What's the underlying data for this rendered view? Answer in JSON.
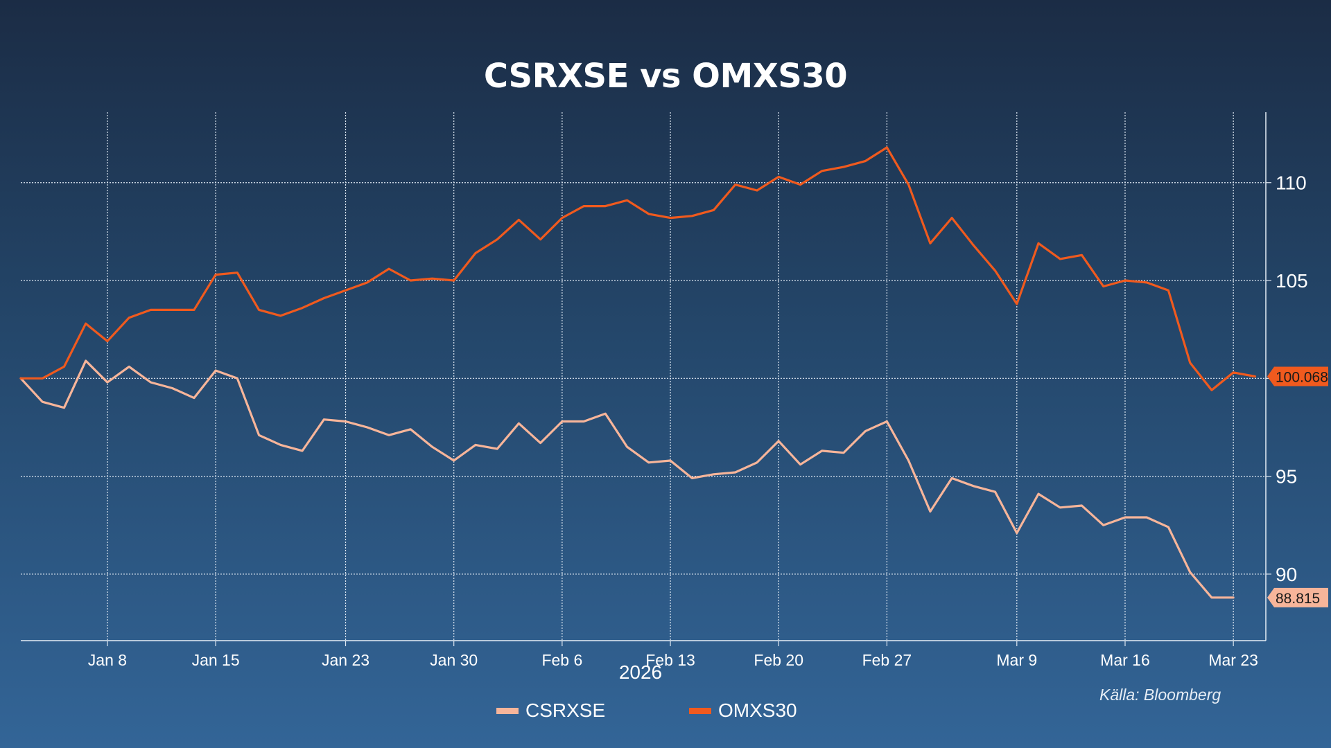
{
  "chart_data": {
    "type": "line",
    "title": "CSRXSE vs OMXS30",
    "xlabel": "2026",
    "ylabel": "",
    "ylim": [
      86.6,
      113.6
    ],
    "y_ticks": [
      90,
      95,
      100,
      105,
      110
    ],
    "y_tick_labels": [
      "90",
      "95",
      "100",
      "105",
      "110"
    ],
    "x_ticks": [
      4,
      9,
      15,
      20,
      25,
      30,
      35,
      40,
      46,
      51,
      56
    ],
    "x_tick_labels": [
      "Jan 8",
      "Jan 15",
      "Jan 23",
      "Jan 30",
      "Feb 6",
      "Feb 13",
      "Feb 20",
      "Feb 27",
      "Mar 9",
      "Mar 16",
      "Mar 23"
    ],
    "x_range": [
      0,
      57.5
    ],
    "grid": true,
    "legend_position": "bottom",
    "source": "Källa: Bloomberg",
    "series": [
      {
        "name": "CSRXSE",
        "color": "#f7b59a",
        "last_value_label": "88.815",
        "values": [
          100,
          98.8,
          98.5,
          100.9,
          99.8,
          100.6,
          99.8,
          99.5,
          99.0,
          100.4,
          100.0,
          97.1,
          96.6,
          96.3,
          97.9,
          97.8,
          97.5,
          97.1,
          97.4,
          96.5,
          95.8,
          96.6,
          96.4,
          97.7,
          96.7,
          97.8,
          97.8,
          98.2,
          96.5,
          95.7,
          95.8,
          94.9,
          95.1,
          95.2,
          95.7,
          96.8,
          95.6,
          96.3,
          96.2,
          97.3,
          97.8,
          95.8,
          93.2,
          94.9,
          94.5,
          94.2,
          92.1,
          94.1,
          93.4,
          93.5,
          92.5,
          92.9,
          92.9,
          92.4,
          90.1,
          88.8,
          88.8
        ]
      },
      {
        "name": "OMXS30",
        "color": "#f05a1e",
        "last_value_label": "100.068",
        "values": [
          100,
          100,
          100.6,
          102.8,
          101.9,
          103.1,
          103.5,
          103.5,
          103.5,
          105.3,
          105.4,
          103.5,
          103.2,
          103.6,
          104.1,
          104.5,
          104.9,
          105.6,
          105.0,
          105.1,
          105.0,
          106.4,
          107.1,
          108.1,
          107.1,
          108.2,
          108.8,
          108.8,
          109.1,
          108.4,
          108.2,
          108.3,
          108.6,
          109.9,
          109.6,
          110.3,
          109.9,
          110.6,
          110.8,
          111.1,
          111.8,
          109.9,
          106.9,
          108.2,
          106.8,
          105.5,
          103.8,
          106.9,
          106.1,
          106.3,
          104.7,
          105.0,
          104.9,
          104.5,
          100.8,
          99.4,
          100.3,
          100.1
        ]
      }
    ]
  }
}
